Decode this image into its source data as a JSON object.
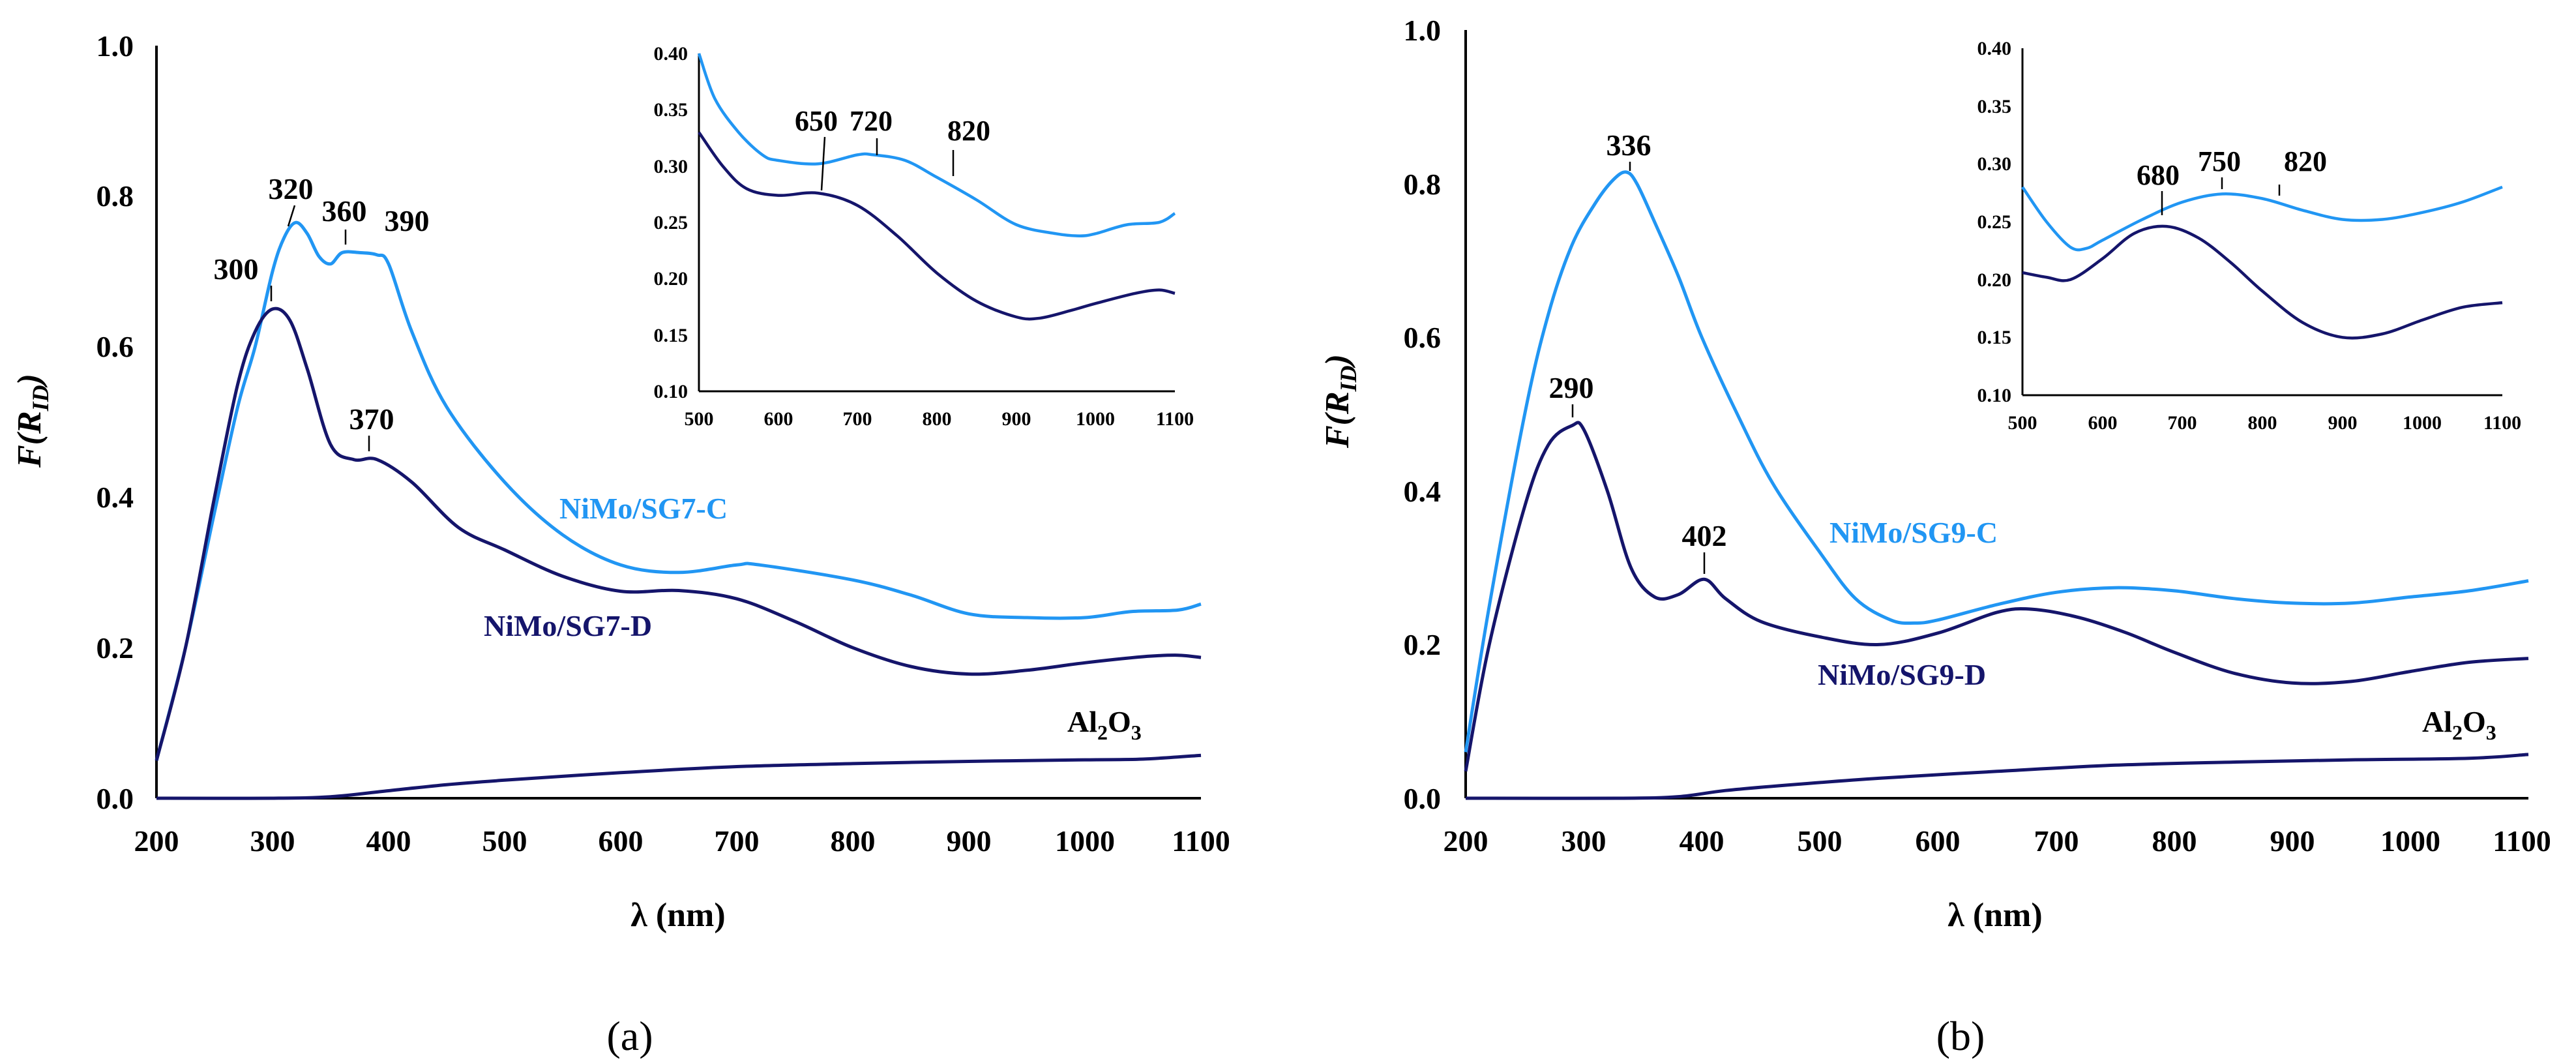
{
  "colors": {
    "light": "#2196F3",
    "dark": "#15156B",
    "axis": "#000000"
  },
  "chart_data": [
    {
      "type": "line",
      "panel_label": "(a)",
      "xlabel": "λ (nm)",
      "ylabel_main": "F(R",
      "ylabel_sub": "ID",
      "ylabel_close": ")",
      "xlim": [
        200,
        1100
      ],
      "ylim": [
        0,
        1.0
      ],
      "xticks": [
        "200",
        "300",
        "400",
        "500",
        "600",
        "700",
        "800",
        "900",
        "1000",
        "1100"
      ],
      "yticks": [
        "0.0",
        "0.2",
        "0.4",
        "0.6",
        "0.8",
        "1.0"
      ],
      "series": [
        {
          "name": "NiMo/SG7-C",
          "color": "light",
          "points": [
            [
              200,
              0.05
            ],
            [
              225,
              0.2
            ],
            [
              250,
              0.38
            ],
            [
              270,
              0.52
            ],
            [
              285,
              0.6
            ],
            [
              300,
              0.7
            ],
            [
              310,
              0.745
            ],
            [
              320,
              0.765
            ],
            [
              330,
              0.75
            ],
            [
              340,
              0.72
            ],
            [
              350,
              0.71
            ],
            [
              360,
              0.725
            ],
            [
              375,
              0.725
            ],
            [
              390,
              0.722
            ],
            [
              400,
              0.71
            ],
            [
              420,
              0.62
            ],
            [
              450,
              0.52
            ],
            [
              500,
              0.42
            ],
            [
              550,
              0.35
            ],
            [
              600,
              0.31
            ],
            [
              650,
              0.3
            ],
            [
              700,
              0.31
            ],
            [
              720,
              0.31
            ],
            [
              800,
              0.29
            ],
            [
              850,
              0.27
            ],
            [
              900,
              0.245
            ],
            [
              950,
              0.24
            ],
            [
              1000,
              0.24
            ],
            [
              1040,
              0.248
            ],
            [
              1080,
              0.25
            ],
            [
              1100,
              0.258
            ]
          ]
        },
        {
          "name": "NiMo/SG7-D",
          "color": "dark",
          "points": [
            [
              200,
              0.05
            ],
            [
              225,
              0.2
            ],
            [
              250,
              0.4
            ],
            [
              270,
              0.55
            ],
            [
              285,
              0.62
            ],
            [
              300,
              0.65
            ],
            [
              315,
              0.635
            ],
            [
              330,
              0.57
            ],
            [
              350,
              0.47
            ],
            [
              370,
              0.45
            ],
            [
              390,
              0.45
            ],
            [
              420,
              0.42
            ],
            [
              460,
              0.36
            ],
            [
              500,
              0.33
            ],
            [
              550,
              0.295
            ],
            [
              600,
              0.275
            ],
            [
              650,
              0.276
            ],
            [
              700,
              0.265
            ],
            [
              750,
              0.235
            ],
            [
              800,
              0.2
            ],
            [
              850,
              0.175
            ],
            [
              900,
              0.165
            ],
            [
              950,
              0.17
            ],
            [
              1000,
              0.18
            ],
            [
              1050,
              0.188
            ],
            [
              1080,
              0.19
            ],
            [
              1100,
              0.187
            ]
          ]
        },
        {
          "name": "Al2O3",
          "color": "dark",
          "points": [
            [
              200,
              0.0
            ],
            [
              300,
              0.0
            ],
            [
              350,
              0.002
            ],
            [
              400,
              0.01
            ],
            [
              450,
              0.018
            ],
            [
              500,
              0.024
            ],
            [
              600,
              0.034
            ],
            [
              700,
              0.042
            ],
            [
              800,
              0.046
            ],
            [
              900,
              0.049
            ],
            [
              1000,
              0.051
            ],
            [
              1050,
              0.052
            ],
            [
              1100,
              0.057
            ]
          ]
        }
      ],
      "series_labels": {
        "light": "NiMo/SG7-C",
        "dark": "NiMo/SG7-D",
        "base_main": "Al",
        "base_sub1": "2",
        "base_mid": "O",
        "base_sub2": "3"
      },
      "peaks": [
        "300",
        "320",
        "360",
        "390",
        "370"
      ],
      "inset": {
        "xlim": [
          500,
          1100
        ],
        "ylim": [
          0.1,
          0.4
        ],
        "xticks": [
          "500",
          "600",
          "700",
          "800",
          "900",
          "1000",
          "1100"
        ],
        "yticks": [
          "0.10",
          "0.15",
          "0.20",
          "0.25",
          "0.30",
          "0.35",
          "0.40"
        ],
        "peaks": [
          "650",
          "720",
          "820"
        ],
        "series": [
          {
            "color": "light",
            "points": [
              [
                500,
                0.4
              ],
              [
                520,
                0.36
              ],
              [
                550,
                0.33
              ],
              [
                580,
                0.31
              ],
              [
                600,
                0.305
              ],
              [
                650,
                0.302
              ],
              [
                700,
                0.31
              ],
              [
                720,
                0.31
              ],
              [
                760,
                0.305
              ],
              [
                800,
                0.29
              ],
              [
                850,
                0.27
              ],
              [
                900,
                0.248
              ],
              [
                950,
                0.24
              ],
              [
                980,
                0.238
              ],
              [
                1000,
                0.24
              ],
              [
                1040,
                0.248
              ],
              [
                1080,
                0.25
              ],
              [
                1100,
                0.258
              ]
            ]
          },
          {
            "color": "dark",
            "points": [
              [
                500,
                0.33
              ],
              [
                530,
                0.3
              ],
              [
                560,
                0.28
              ],
              [
                600,
                0.274
              ],
              [
                650,
                0.276
              ],
              [
                700,
                0.265
              ],
              [
                750,
                0.238
              ],
              [
                800,
                0.205
              ],
              [
                850,
                0.18
              ],
              [
                900,
                0.166
              ],
              [
                930,
                0.165
              ],
              [
                970,
                0.172
              ],
              [
                1000,
                0.178
              ],
              [
                1050,
                0.187
              ],
              [
                1080,
                0.19
              ],
              [
                1100,
                0.187
              ]
            ]
          }
        ]
      }
    },
    {
      "type": "line",
      "panel_label": "(b)",
      "xlabel": "λ (nm)",
      "ylabel_main": "F(R",
      "ylabel_sub": "ID",
      "ylabel_close": ")",
      "xlim": [
        200,
        1100
      ],
      "ylim": [
        0,
        1.0
      ],
      "xticks": [
        "200",
        "300",
        "400",
        "500",
        "600",
        "700",
        "800",
        "900",
        "1000",
        "1100"
      ],
      "yticks": [
        "0.0",
        "0.2",
        "0.4",
        "0.6",
        "0.8",
        "1.0"
      ],
      "series": [
        {
          "name": "NiMo/SG9-C",
          "color": "light",
          "points": [
            [
              200,
              0.06
            ],
            [
              220,
              0.25
            ],
            [
              250,
              0.5
            ],
            [
              270,
              0.63
            ],
            [
              290,
              0.72
            ],
            [
              310,
              0.775
            ],
            [
              325,
              0.805
            ],
            [
              336,
              0.815
            ],
            [
              345,
              0.8
            ],
            [
              360,
              0.75
            ],
            [
              380,
              0.68
            ],
            [
              400,
              0.6
            ],
            [
              430,
              0.5
            ],
            [
              460,
              0.41
            ],
            [
              500,
              0.32
            ],
            [
              530,
              0.26
            ],
            [
              560,
              0.232
            ],
            [
              580,
              0.228
            ],
            [
              600,
              0.232
            ],
            [
              650,
              0.252
            ],
            [
              700,
              0.268
            ],
            [
              750,
              0.274
            ],
            [
              800,
              0.27
            ],
            [
              850,
              0.26
            ],
            [
              900,
              0.254
            ],
            [
              950,
              0.254
            ],
            [
              1000,
              0.262
            ],
            [
              1050,
              0.27
            ],
            [
              1100,
              0.283
            ]
          ]
        },
        {
          "name": "NiMo/SG9-D",
          "color": "dark",
          "points": [
            [
              200,
              0.035
            ],
            [
              220,
              0.2
            ],
            [
              250,
              0.38
            ],
            [
              270,
              0.46
            ],
            [
              290,
              0.485
            ],
            [
              300,
              0.48
            ],
            [
              320,
              0.4
            ],
            [
              340,
              0.3
            ],
            [
              360,
              0.262
            ],
            [
              380,
              0.265
            ],
            [
              402,
              0.285
            ],
            [
              420,
              0.26
            ],
            [
              450,
              0.23
            ],
            [
              500,
              0.21
            ],
            [
              550,
              0.2
            ],
            [
              600,
              0.215
            ],
            [
              650,
              0.242
            ],
            [
              680,
              0.246
            ],
            [
              720,
              0.235
            ],
            [
              760,
              0.215
            ],
            [
              800,
              0.19
            ],
            [
              850,
              0.163
            ],
            [
              900,
              0.15
            ],
            [
              950,
              0.152
            ],
            [
              1000,
              0.165
            ],
            [
              1050,
              0.177
            ],
            [
              1100,
              0.182
            ]
          ]
        },
        {
          "name": "Al2O3",
          "color": "dark",
          "points": [
            [
              200,
              0.0
            ],
            [
              330,
              0.0
            ],
            [
              380,
              0.002
            ],
            [
              420,
              0.01
            ],
            [
              480,
              0.018
            ],
            [
              550,
              0.026
            ],
            [
              650,
              0.035
            ],
            [
              750,
              0.043
            ],
            [
              850,
              0.047
            ],
            [
              950,
              0.05
            ],
            [
              1050,
              0.052
            ],
            [
              1100,
              0.057
            ]
          ]
        }
      ],
      "series_labels": {
        "light": "NiMo/SG9-C",
        "dark": "NiMo/SG9-D",
        "base_main": "Al",
        "base_sub1": "2",
        "base_mid": "O",
        "base_sub2": "3"
      },
      "peaks": [
        "336",
        "290",
        "402"
      ],
      "inset": {
        "xlim": [
          500,
          1100
        ],
        "ylim": [
          0.1,
          0.4
        ],
        "xticks": [
          "500",
          "600",
          "700",
          "800",
          "900",
          "1000",
          "1100"
        ],
        "yticks": [
          "0.10",
          "0.15",
          "0.20",
          "0.25",
          "0.30",
          "0.35",
          "0.40"
        ],
        "peaks": [
          "680",
          "750",
          "820"
        ],
        "series": [
          {
            "color": "light",
            "points": [
              [
                500,
                0.28
              ],
              [
                530,
                0.25
              ],
              [
                560,
                0.228
              ],
              [
                580,
                0.227
              ],
              [
                600,
                0.234
              ],
              [
                650,
                0.252
              ],
              [
                700,
                0.267
              ],
              [
                750,
                0.274
              ],
              [
                800,
                0.27
              ],
              [
                850,
                0.26
              ],
              [
                900,
                0.252
              ],
              [
                950,
                0.252
              ],
              [
                1000,
                0.258
              ],
              [
                1050,
                0.267
              ],
              [
                1100,
                0.28
              ]
            ]
          },
          {
            "color": "dark",
            "points": [
              [
                500,
                0.206
              ],
              [
                530,
                0.202
              ],
              [
                560,
                0.2
              ],
              [
                600,
                0.218
              ],
              [
                640,
                0.24
              ],
              [
                680,
                0.246
              ],
              [
                720,
                0.236
              ],
              [
                760,
                0.215
              ],
              [
                800,
                0.19
              ],
              [
                850,
                0.163
              ],
              [
                900,
                0.15
              ],
              [
                950,
                0.153
              ],
              [
                1000,
                0.165
              ],
              [
                1050,
                0.176
              ],
              [
                1100,
                0.18
              ]
            ]
          }
        ]
      }
    }
  ]
}
